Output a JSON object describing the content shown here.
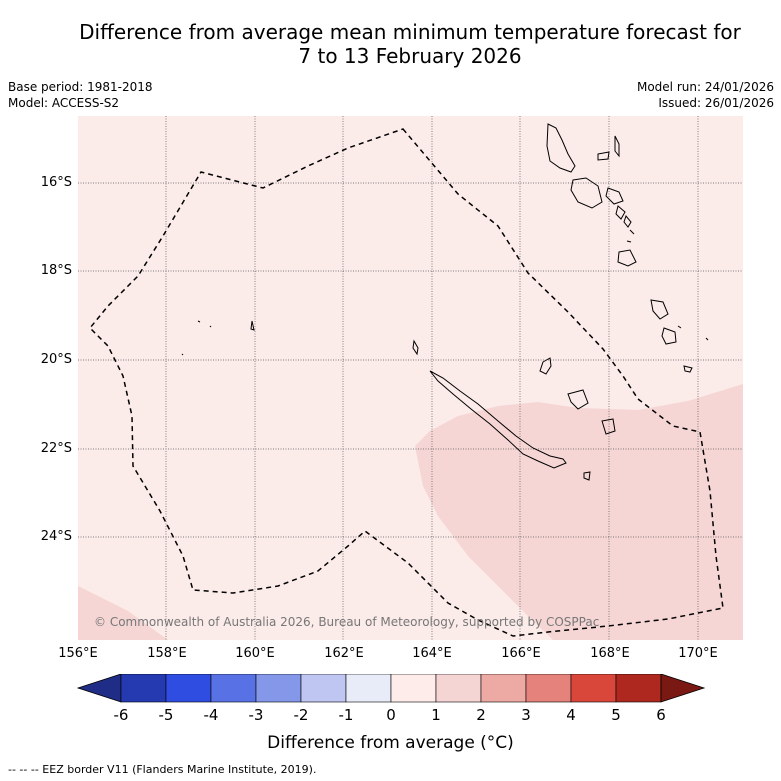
{
  "title": {
    "line1": "Difference from average mean minimum temperature forecast for",
    "line2": "7 to 13 February 2026"
  },
  "meta": {
    "base_period": "Base period: 1981-2018",
    "model": "Model: ACCESS-S2",
    "model_run": "Model run: 24/01/2026",
    "issued": "Issued: 26/01/2026"
  },
  "map": {
    "lat_labels": [
      "16°S",
      "18°S",
      "20°S",
      "22°S",
      "24°S"
    ],
    "lon_labels": [
      "156°E",
      "158°E",
      "160°E",
      "162°E",
      "164°E",
      "166°E",
      "168°E",
      "170°E"
    ],
    "copyright": "© Commonwealth of Australia 2026, Bureau of Meteorology, supported by COSPPac",
    "colors": {
      "anomaly_0_1": "#fbebe9",
      "anomaly_1_2": "#f5d6d5",
      "grid": "#555555"
    }
  },
  "colorbar": {
    "ticks": [
      "-6",
      "-5",
      "-4",
      "-3",
      "-2",
      "-1",
      "0",
      "1",
      "2",
      "3",
      "4",
      "5",
      "6"
    ],
    "colors": [
      "#1f2d86",
      "#2539b0",
      "#2f4de0",
      "#5872e6",
      "#8497e9",
      "#bfc6f1",
      "#e8ebf8",
      "#fdecea",
      "#f5d5d3",
      "#edaaa4",
      "#e5827c",
      "#d9473b",
      "#ae2820",
      "#7a1914"
    ],
    "label": "Difference from average (°C)"
  },
  "footnote": "--  --  -- EEZ border V11 (Flanders Marine Institute, 2019)."
}
